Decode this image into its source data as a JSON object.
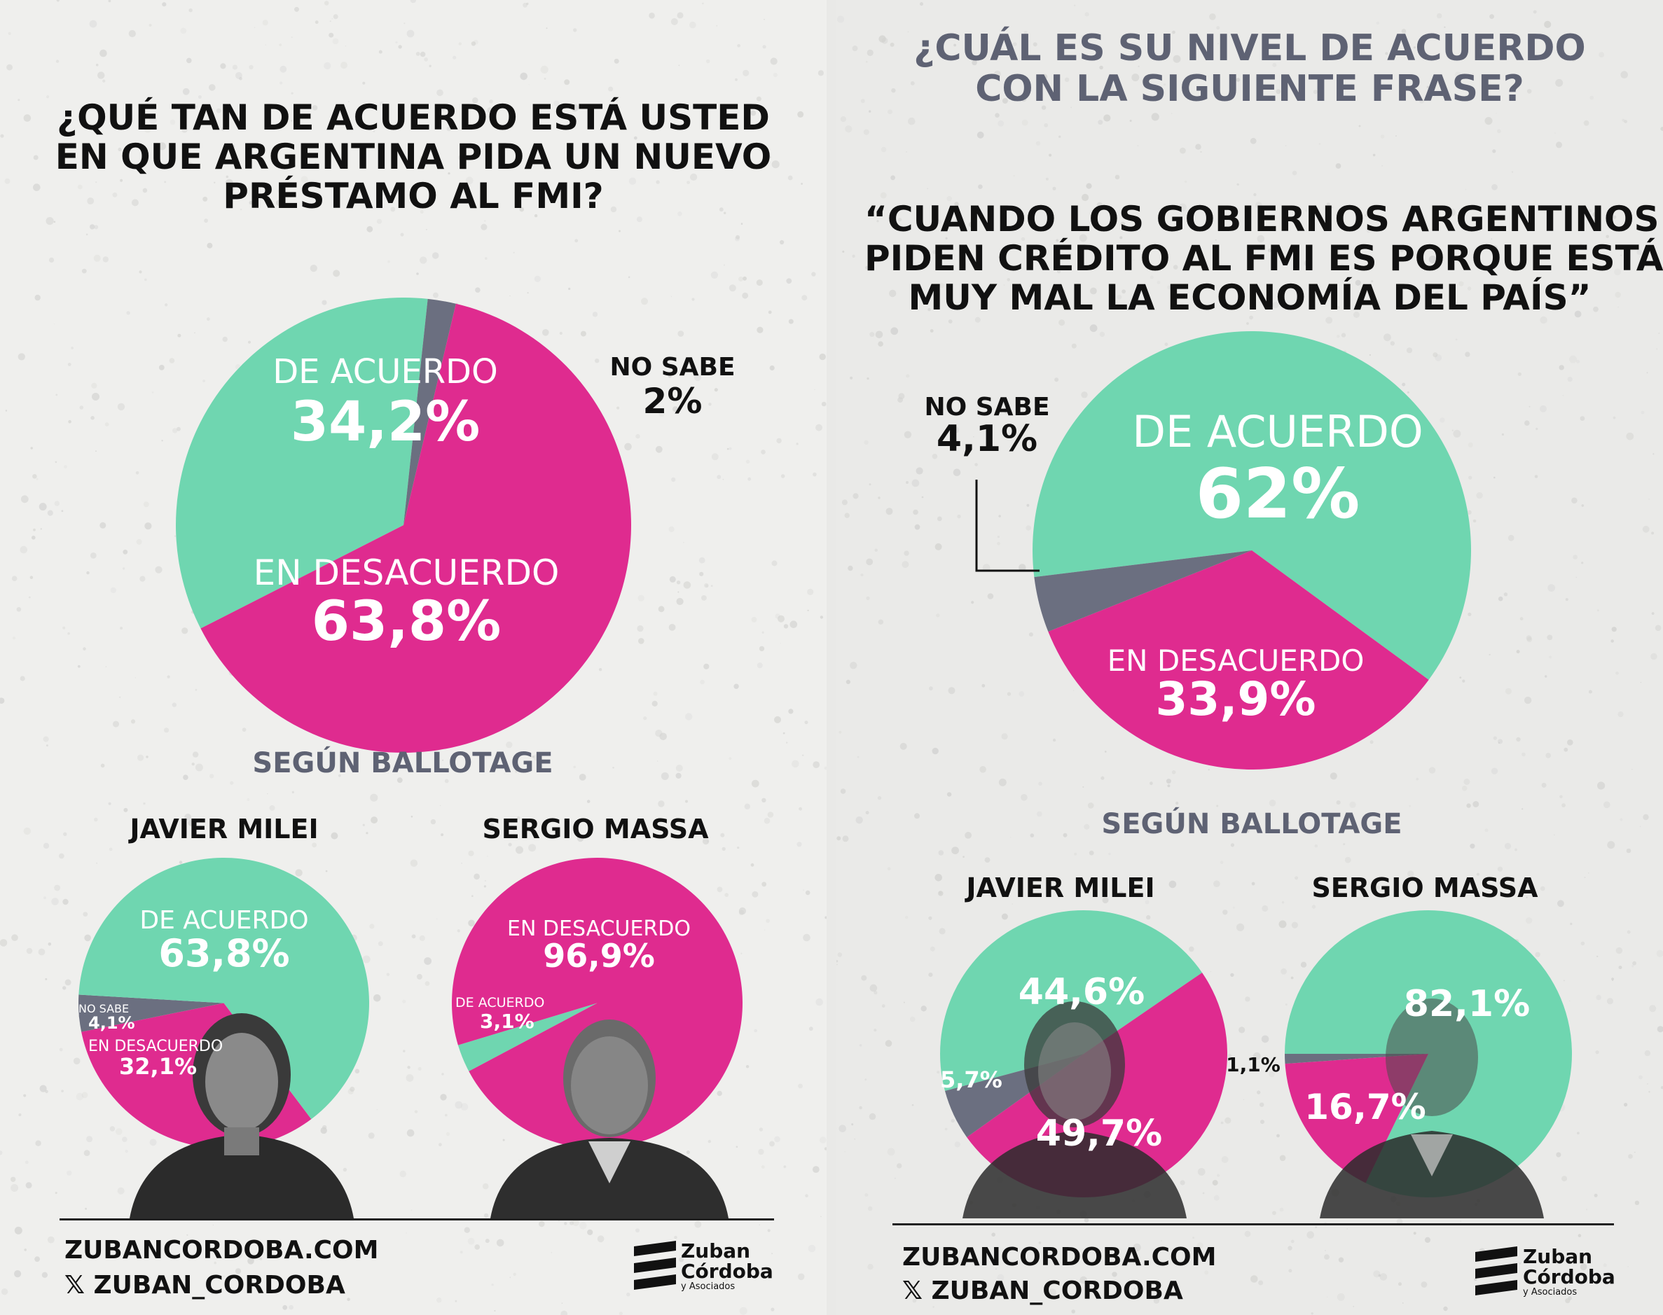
{
  "colors": {
    "agree": "#6fd6b0",
    "disagree": "#df2b8f",
    "unknown": "#6b6f80",
    "title_gray": "#5e6273"
  },
  "left_panel": {
    "question_lines": [
      "¿QUÉ TAN DE ACUERDO ESTÁ USTED",
      "EN QUE ARGENTINA PIDA UN NUEVO",
      "PRÉSTAMO AL FMI?"
    ],
    "main_labels": {
      "agree": "DE ACUERDO",
      "agree_pct": "34,2%",
      "disagree": "EN DESACUERDO",
      "disagree_pct": "63,8%",
      "unknown": "NO SABE",
      "unknown_pct": "2%"
    },
    "subtitle": "SEGÚN BALLOTAGE",
    "milei": {
      "name": "JAVIER MILEI",
      "agree": "DE ACUERDO",
      "agree_pct": "63,8%",
      "unknown": "NO SABE",
      "unknown_pct": "4,1%",
      "disagree": "EN DESACUERDO",
      "disagree_pct": "32,1%"
    },
    "massa": {
      "name": "SERGIO MASSA",
      "disagree": "EN DESACUERDO",
      "disagree_pct": "96,9%",
      "agree": "DE ACUERDO",
      "agree_pct": "3,1%"
    },
    "footer": {
      "site": "ZUBANCORDOBA.COM",
      "handle": "𝕏 ZUBAN_CORDOBA"
    },
    "logo": {
      "line1": "Zuban",
      "line2": "Córdoba",
      "line3": "y Asociados"
    }
  },
  "right_panel": {
    "question_lines": [
      "¿CUÁL ES SU NIVEL DE ACUERDO",
      "CON LA SIGUIENTE FRASE?"
    ],
    "quote_lines": [
      "“CUANDO LOS GOBIERNOS ARGENTINOS",
      "PIDEN CRÉDITO AL FMI ES PORQUE ESTÁ",
      "MUY MAL LA ECONOMÍA DEL PAÍS”"
    ],
    "main_labels": {
      "agree": "DE ACUERDO",
      "agree_pct": "62%",
      "disagree": "EN DESACUERDO",
      "disagree_pct": "33,9%",
      "unknown": "NO SABE",
      "unknown_pct": "4,1%"
    },
    "subtitle": "SEGÚN BALLOTAGE",
    "milei": {
      "name": "JAVIER MILEI",
      "agree_pct": "44,6%",
      "unknown_pct": "5,7%",
      "disagree_pct": "49,7%"
    },
    "massa": {
      "name": "SERGIO MASSA",
      "agree_pct": "82,1%",
      "unknown_pct": "1,1%",
      "disagree_pct": "16,7%"
    },
    "footer": {
      "site": "ZUBANCORDOBA.COM",
      "handle": "𝕏 ZUBAN_CORDOBA"
    },
    "logo": {
      "line1": "Zuban",
      "line2": "Córdoba",
      "line3": "y Asociados"
    }
  },
  "chart_data": [
    {
      "type": "pie",
      "title": "¿QUÉ TAN DE ACUERDO ESTÁ USTED EN QUE ARGENTINA PIDA UN NUEVO PRÉSTAMO AL FMI?",
      "categories": [
        "DE ACUERDO",
        "EN DESACUERDO",
        "NO SABE"
      ],
      "values": [
        34.2,
        63.8,
        2
      ]
    },
    {
      "type": "pie",
      "title": "JAVIER MILEI",
      "categories": [
        "DE ACUERDO",
        "EN DESACUERDO",
        "NO SABE"
      ],
      "values": [
        63.8,
        32.1,
        4.1
      ]
    },
    {
      "type": "pie",
      "title": "SERGIO MASSA",
      "categories": [
        "DE ACUERDO",
        "EN DESACUERDO"
      ],
      "values": [
        3.1,
        96.9
      ]
    },
    {
      "type": "pie",
      "title": "“CUANDO LOS GOBIERNOS ARGENTINOS PIDEN CRÉDITO AL FMI ES PORQUE ESTÁ MUY MAL LA ECONOMÍA DEL PAÍS”",
      "categories": [
        "DE ACUERDO",
        "EN DESACUERDO",
        "NO SABE"
      ],
      "values": [
        62,
        33.9,
        4.1
      ]
    },
    {
      "type": "pie",
      "title": "JAVIER MILEI",
      "categories": [
        "DE ACUERDO",
        "EN DESACUERDO",
        "NO SABE"
      ],
      "values": [
        44.6,
        49.7,
        5.7
      ]
    },
    {
      "type": "pie",
      "title": "SERGIO MASSA",
      "categories": [
        "DE ACUERDO",
        "EN DESACUERDO",
        "NO SABE"
      ],
      "values": [
        82.1,
        16.7,
        1.1
      ]
    }
  ]
}
